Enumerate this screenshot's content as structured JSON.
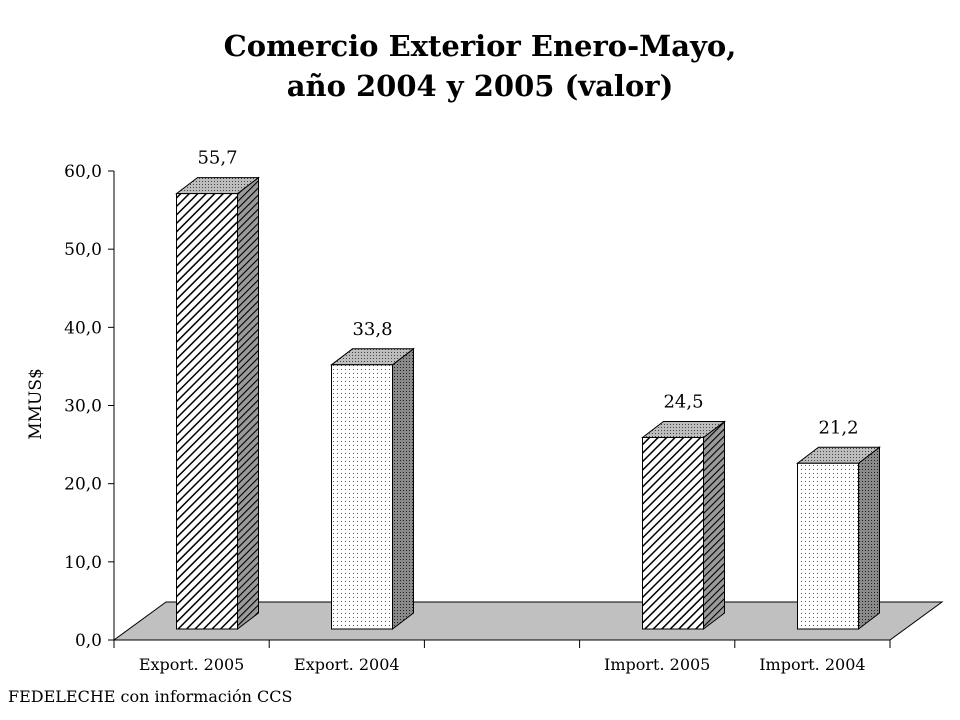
{
  "title_line1": "Comercio Exterior Enero-Mayo,",
  "title_line2": "año 2004 y 2005 (valor)",
  "source": "FEDELECHE con información CCS",
  "chart_data": {
    "type": "bar",
    "title": "Comercio Exterior Enero-Mayo, año 2004 y 2005 (valor)",
    "xlabel": "",
    "ylabel": "MMUS$",
    "ylim": [
      0,
      60
    ],
    "yticks": [
      "0,0",
      "10,0",
      "20,0",
      "30,0",
      "40,0",
      "50,0",
      "60,0"
    ],
    "categories": [
      "Export. 2005",
      "Export. 2004",
      "",
      "Import. 2005",
      "Import. 2004"
    ],
    "values": [
      55.7,
      33.8,
      null,
      24.5,
      21.2
    ],
    "data_labels": [
      "55,7",
      "33,8",
      "",
      "24,5",
      "21,2"
    ],
    "patterns": [
      "diagonal-hatch",
      "dots",
      "",
      "diagonal-hatch",
      "dots"
    ],
    "three_d": true,
    "grid": false,
    "legend": "none",
    "colors": {
      "floor": "#c0c0c0",
      "side": "#808080",
      "top": "#b0b0b0",
      "bar_fill": "#ffffff",
      "line": "#000000"
    }
  }
}
